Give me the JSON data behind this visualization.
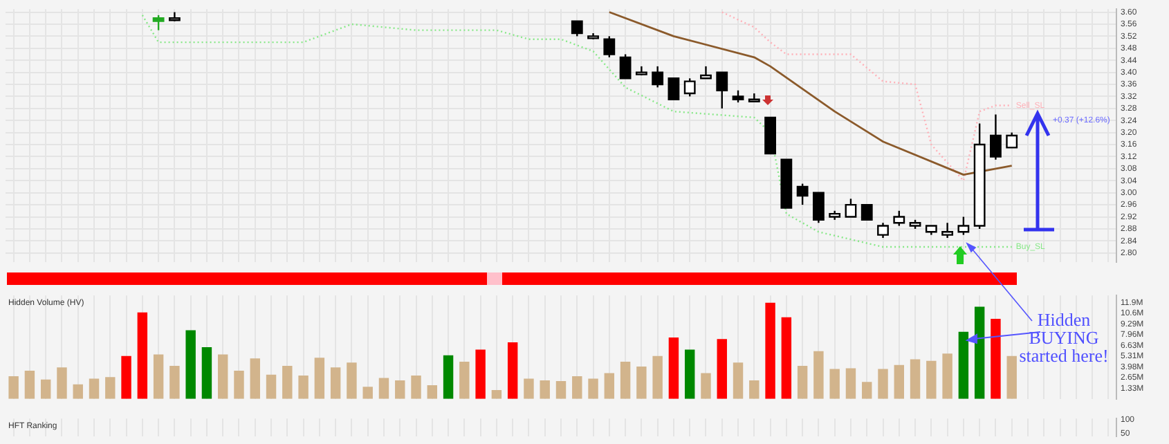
{
  "chart_data": [
    {
      "type": "candlestick",
      "categories": [
        null,
        null,
        null,
        null,
        null,
        null,
        null,
        null,
        null,
        null,
        null,
        null,
        null,
        null,
        null,
        null,
        null,
        null,
        null,
        null,
        null,
        null,
        null,
        null,
        null,
        null,
        null,
        null,
        null,
        null,
        null,
        null,
        null,
        null,
        null,
        null,
        null,
        null,
        null,
        null,
        null,
        null,
        null,
        null,
        null,
        null,
        null,
        null,
        null,
        null,
        null,
        null,
        null,
        null,
        null,
        null,
        null,
        null,
        null,
        null,
        null,
        null,
        null,
        null,
        null,
        null,
        null,
        null,
        null
      ],
      "ohlc": [
        null,
        null,
        null,
        null,
        null,
        null,
        null,
        null,
        null,
        [
          3.57,
          3.59,
          3.54,
          3.58
        ],
        [
          3.58,
          3.6,
          3.57,
          3.58
        ],
        null,
        null,
        null,
        null,
        null,
        null,
        null,
        null,
        null,
        null,
        null,
        null,
        null,
        null,
        null,
        null,
        null,
        null,
        null,
        null,
        null,
        null,
        null,
        null,
        [
          3.57,
          3.57,
          3.52,
          3.53
        ],
        [
          3.52,
          3.53,
          3.51,
          3.52
        ],
        [
          3.51,
          3.52,
          3.45,
          3.46
        ],
        [
          3.45,
          3.46,
          3.38,
          3.38
        ],
        [
          3.4,
          3.42,
          3.39,
          3.4
        ],
        [
          3.4,
          3.42,
          3.35,
          3.36
        ],
        [
          3.38,
          3.38,
          3.31,
          3.31
        ],
        [
          3.33,
          3.38,
          3.32,
          3.37
        ],
        [
          3.38,
          3.42,
          3.38,
          3.39
        ],
        [
          3.4,
          3.4,
          3.28,
          3.34
        ],
        [
          3.32,
          3.34,
          3.3,
          3.31
        ],
        [
          3.31,
          3.33,
          3.31,
          3.31
        ],
        [
          3.25,
          3.25,
          3.13,
          3.13
        ],
        [
          3.11,
          3.11,
          2.95,
          2.95
        ],
        [
          3.02,
          3.03,
          2.96,
          2.99
        ],
        [
          3.0,
          3.0,
          2.9,
          2.91
        ],
        [
          2.92,
          2.94,
          2.91,
          2.93
        ],
        [
          2.92,
          2.98,
          2.92,
          2.96
        ],
        [
          2.96,
          2.96,
          2.91,
          2.91
        ],
        [
          2.86,
          2.9,
          2.85,
          2.89
        ],
        [
          2.9,
          2.94,
          2.89,
          2.92
        ],
        [
          2.89,
          2.91,
          2.88,
          2.9
        ],
        [
          2.87,
          2.89,
          2.86,
          2.89
        ],
        [
          2.86,
          2.9,
          2.85,
          2.87
        ],
        [
          2.87,
          2.92,
          2.86,
          2.89
        ],
        [
          2.89,
          3.23,
          2.88,
          3.16
        ],
        [
          3.19,
          3.26,
          3.11,
          3.12
        ],
        [
          3.15,
          3.2,
          3.15,
          3.19
        ],
        null,
        null,
        null,
        null,
        null,
        null
      ],
      "colors": [
        null,
        null,
        null,
        null,
        null,
        null,
        null,
        null,
        null,
        "#22aa22",
        "#ffffff",
        null,
        null,
        null,
        null,
        null,
        null,
        null,
        null,
        null,
        null,
        null,
        null,
        null,
        null,
        null,
        null,
        null,
        null,
        null,
        null,
        null,
        null,
        null,
        null,
        "#000000",
        "#ffffff",
        "#000000",
        "#000000",
        "#ffffff",
        "#000000",
        "#000000",
        "#ffffff",
        "#ffffff",
        "#000000",
        "#000000",
        "#ffffff",
        "#000000",
        "#000000",
        "#000000",
        "#000000",
        "#ffffff",
        "#ffffff",
        "#000000",
        "#ffffff",
        "#ffffff",
        "#ffffff",
        "#ffffff",
        "#ffffff",
        "#ffffff",
        "#ffffff",
        "#000000",
        "#ffffff",
        null,
        null,
        null,
        null,
        null,
        null
      ],
      "series": [
        {
          "type": "line",
          "color": "#8b5a2b",
          "line_style": "solid",
          "values": [
            null,
            null,
            null,
            null,
            null,
            null,
            null,
            null,
            null,
            null,
            null,
            null,
            null,
            null,
            null,
            null,
            null,
            null,
            null,
            null,
            null,
            null,
            null,
            null,
            null,
            null,
            null,
            null,
            null,
            null,
            null,
            null,
            null,
            null,
            null,
            null,
            null,
            3.6,
            null,
            null,
            null,
            3.52,
            null,
            null,
            null,
            null,
            3.45,
            3.42,
            null,
            null,
            null,
            3.27,
            null,
            null,
            3.17,
            null,
            null,
            null,
            null,
            3.06,
            null,
            null,
            3.09,
            null,
            null,
            null,
            null,
            null,
            null
          ]
        },
        {
          "type": "line",
          "name": "Buy_SL",
          "color": "#88e888",
          "line_style": "dotted",
          "values": [
            null,
            null,
            null,
            null,
            null,
            null,
            null,
            null,
            3.59,
            3.5,
            null,
            null,
            null,
            null,
            null,
            null,
            null,
            null,
            3.5,
            null,
            null,
            3.56,
            null,
            null,
            null,
            3.54,
            null,
            null,
            null,
            null,
            3.54,
            null,
            3.51,
            null,
            3.51,
            null,
            3.47,
            null,
            3.35,
            null,
            null,
            3.27,
            null,
            null,
            null,
            null,
            3.25,
            3.2,
            2.93,
            null,
            2.87,
            null,
            null,
            null,
            2.82,
            null,
            null,
            null,
            null,
            null,
            null,
            null,
            2.82,
            null,
            null,
            null,
            null,
            null,
            null
          ]
        },
        {
          "type": "line",
          "name": "Sell_SL",
          "color": "#ffb0b8",
          "line_style": "dotted",
          "values": [
            null,
            null,
            null,
            null,
            null,
            null,
            null,
            null,
            null,
            null,
            null,
            null,
            null,
            null,
            null,
            null,
            null,
            null,
            null,
            null,
            null,
            null,
            null,
            null,
            null,
            null,
            null,
            null,
            null,
            null,
            null,
            null,
            null,
            null,
            null,
            null,
            null,
            null,
            null,
            null,
            null,
            null,
            null,
            null,
            3.6,
            null,
            3.55,
            3.5,
            3.46,
            null,
            null,
            null,
            3.46,
            null,
            3.37,
            null,
            3.36,
            3.16,
            null,
            3.04,
            3.27,
            3.29,
            3.29,
            null,
            null,
            null,
            null,
            null,
            null
          ]
        }
      ],
      "ylim": [
        2.77,
        3.61
      ],
      "yticks": [
        {
          "value": 2.8,
          "label": "2.80"
        },
        {
          "value": 2.84,
          "label": "2.84"
        },
        {
          "value": 2.88,
          "label": "2.88"
        },
        {
          "value": 2.92,
          "label": "2.92"
        },
        {
          "value": 2.96,
          "label": "2.96"
        },
        {
          "value": 3.0,
          "label": "3.00"
        },
        {
          "value": 3.04,
          "label": "3.04"
        },
        {
          "value": 3.08,
          "label": "3.08"
        },
        {
          "value": 3.12,
          "label": "3.12"
        },
        {
          "value": 3.16,
          "label": "3.16"
        },
        {
          "value": 3.2,
          "label": "3.20"
        },
        {
          "value": 3.24,
          "label": "3.24"
        },
        {
          "value": 3.28,
          "label": "3.28"
        },
        {
          "value": 3.32,
          "label": "3.32"
        },
        {
          "value": 3.36,
          "label": "3.36"
        },
        {
          "value": 3.4,
          "label": "3.40"
        },
        {
          "value": 3.44,
          "label": "3.44"
        },
        {
          "value": 3.48,
          "label": "3.48"
        },
        {
          "value": 3.52,
          "label": "3.52"
        },
        {
          "value": 3.56,
          "label": "3.56"
        },
        {
          "value": 3.6,
          "label": "3.60"
        }
      ],
      "annotations": [
        "+0.37 (+12.6%)"
      ],
      "grid": true,
      "legend": false,
      "marker": "none",
      "tick_labels": "y"
    },
    {
      "type": "bar",
      "title": "Hidden Volume (HV)",
      "categories": [
        null,
        null,
        null,
        null,
        null,
        null,
        null,
        null,
        null,
        null,
        null,
        null,
        null,
        null,
        null,
        null,
        null,
        null,
        null,
        null,
        null,
        null,
        null,
        null,
        null,
        null,
        null,
        null,
        null,
        null,
        null,
        null,
        null,
        null,
        null,
        null,
        null,
        null,
        null,
        null,
        null,
        null,
        null,
        null,
        null,
        null,
        null,
        null,
        null,
        null,
        null,
        null,
        null,
        null,
        null,
        null,
        null,
        null,
        null,
        null,
        null,
        null,
        null,
        null,
        null,
        null,
        null,
        null,
        null
      ],
      "values": [
        2.8,
        3.5,
        2.4,
        3.9,
        1.8,
        2.5,
        2.7,
        5.3,
        10.7,
        5.5,
        4.1,
        8.5,
        6.4,
        5.5,
        3.5,
        5.0,
        3.0,
        4.1,
        2.9,
        5.1,
        3.9,
        4.5,
        1.5,
        2.6,
        2.3,
        2.9,
        1.7,
        5.4,
        4.6,
        6.1,
        1.1,
        7.0,
        2.5,
        2.3,
        2.2,
        2.8,
        2.5,
        3.2,
        4.6,
        4.0,
        5.3,
        7.6,
        6.1,
        3.2,
        7.4,
        4.5,
        2.3,
        11.9,
        10.1,
        4.1,
        5.9,
        3.7,
        3.8,
        2.1,
        3.7,
        4.2,
        4.9,
        4.7,
        5.6,
        8.3,
        11.4,
        9.9,
        5.3,
        null,
        null,
        null,
        null,
        null,
        null
      ],
      "colors": [
        "#d2b48c",
        "#d2b48c",
        "#d2b48c",
        "#d2b48c",
        "#d2b48c",
        "#d2b48c",
        "#d2b48c",
        "#ff0000",
        "#ff0000",
        "#d2b48c",
        "#d2b48c",
        "#008800",
        "#008800",
        "#d2b48c",
        "#d2b48c",
        "#d2b48c",
        "#d2b48c",
        "#d2b48c",
        "#d2b48c",
        "#d2b48c",
        "#d2b48c",
        "#d2b48c",
        "#d2b48c",
        "#d2b48c",
        "#d2b48c",
        "#d2b48c",
        "#d2b48c",
        "#008800",
        "#d2b48c",
        "#ff0000",
        "#d2b48c",
        "#ff0000",
        "#d2b48c",
        "#d2b48c",
        "#d2b48c",
        "#d2b48c",
        "#d2b48c",
        "#d2b48c",
        "#d2b48c",
        "#d2b48c",
        "#d2b48c",
        "#ff0000",
        "#008800",
        "#d2b48c",
        "#ff0000",
        "#d2b48c",
        "#d2b48c",
        "#ff0000",
        "#ff0000",
        "#d2b48c",
        "#d2b48c",
        "#d2b48c",
        "#d2b48c",
        "#d2b48c",
        "#d2b48c",
        "#d2b48c",
        "#d2b48c",
        "#d2b48c",
        "#d2b48c",
        "#008800",
        "#008800",
        "#ff0000",
        "#d2b48c",
        null,
        null,
        null,
        null,
        null,
        null
      ],
      "ylim": [
        0,
        12.8
      ],
      "yticks": [
        {
          "value": 1.33,
          "label": "1.33M"
        },
        {
          "value": 2.65,
          "label": "2.65M"
        },
        {
          "value": 3.98,
          "label": "3.98M"
        },
        {
          "value": 5.31,
          "label": "5.31M"
        },
        {
          "value": 6.63,
          "label": "6.63M"
        },
        {
          "value": 7.96,
          "label": "7.96M"
        },
        {
          "value": 9.29,
          "label": "9.29M"
        },
        {
          "value": 10.6,
          "label": "10.6M"
        },
        {
          "value": 11.9,
          "label": "11.9M"
        }
      ],
      "annotations": [
        "Hidden BUYING started here!"
      ],
      "grid": "x",
      "legend": false,
      "tick_labels": "y"
    },
    {
      "type": "line",
      "title": "HFT Ranking",
      "categories": [
        null,
        null,
        null,
        null,
        null,
        null,
        null,
        null,
        null,
        null,
        null,
        null,
        null,
        null,
        null,
        null,
        null,
        null,
        null,
        null,
        null,
        null,
        null,
        null,
        null,
        null,
        null,
        null,
        null,
        null,
        null,
        null,
        null,
        null,
        null,
        null,
        null,
        null,
        null,
        null,
        null,
        null,
        null,
        null,
        null,
        null,
        null,
        null,
        null,
        null,
        null,
        null,
        null,
        null,
        null,
        null,
        null,
        null,
        null,
        null,
        null,
        null,
        null,
        null,
        null,
        null,
        null,
        null,
        null
      ],
      "ylim": [
        40,
        104
      ],
      "yticks": [
        100,
        50
      ],
      "grid": "x",
      "legend": false,
      "tick_labels": "y"
    }
  ]
}
